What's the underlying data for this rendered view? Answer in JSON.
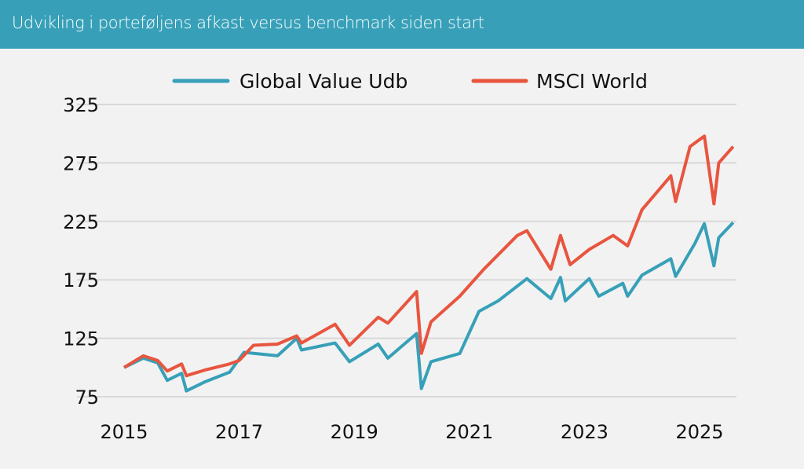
{
  "header": {
    "title": "Udvikling i porteføljens afkast versus benchmark siden start"
  },
  "chart_data": {
    "type": "line",
    "title": "Udvikling i porteføljens afkast versus benchmark siden start",
    "xlabel": "",
    "ylabel": "",
    "ylim": [
      75,
      325
    ],
    "xlim": [
      "2015-01",
      "2025-09"
    ],
    "yticks": [
      "325",
      "275",
      "225",
      "175",
      "125",
      "75"
    ],
    "xticks": [
      "2015",
      "2017",
      "2019",
      "2021",
      "2023",
      "2025"
    ],
    "grid": "horizontal",
    "legend_position": "top",
    "series": [
      {
        "name": "Global Value Udb",
        "color": "#37a0b8",
        "points": [
          [
            "2015-01",
            100
          ],
          [
            "2015-05",
            108
          ],
          [
            "2015-08",
            104
          ],
          [
            "2015-10",
            89
          ],
          [
            "2016-01",
            95
          ],
          [
            "2016-02",
            80
          ],
          [
            "2016-06",
            88
          ],
          [
            "2016-11",
            96
          ],
          [
            "2017-02",
            113
          ],
          [
            "2017-09",
            110
          ],
          [
            "2018-01",
            125
          ],
          [
            "2018-02",
            115
          ],
          [
            "2018-09",
            121
          ],
          [
            "2018-12",
            105
          ],
          [
            "2019-06",
            120
          ],
          [
            "2019-08",
            108
          ],
          [
            "2020-02",
            129
          ],
          [
            "2020-03",
            82
          ],
          [
            "2020-05",
            105
          ],
          [
            "2020-11",
            112
          ],
          [
            "2021-03",
            148
          ],
          [
            "2021-07",
            157
          ],
          [
            "2022-01",
            176
          ],
          [
            "2022-06",
            159
          ],
          [
            "2022-08",
            177
          ],
          [
            "2022-09",
            157
          ],
          [
            "2023-02",
            176
          ],
          [
            "2023-04",
            161
          ],
          [
            "2023-09",
            172
          ],
          [
            "2023-10",
            161
          ],
          [
            "2024-01",
            179
          ],
          [
            "2024-07",
            193
          ],
          [
            "2024-08",
            178
          ],
          [
            "2024-12",
            206
          ],
          [
            "2025-02",
            223
          ],
          [
            "2025-04",
            187
          ],
          [
            "2025-05",
            211
          ],
          [
            "2025-08",
            224
          ]
        ]
      },
      {
        "name": "MSCI World",
        "color": "#e8553f",
        "points": [
          [
            "2015-01",
            100
          ],
          [
            "2015-05",
            110
          ],
          [
            "2015-08",
            106
          ],
          [
            "2015-10",
            97
          ],
          [
            "2016-01",
            103
          ],
          [
            "2016-02",
            93
          ],
          [
            "2016-06",
            98
          ],
          [
            "2016-11",
            103
          ],
          [
            "2017-01",
            106
          ],
          [
            "2017-04",
            119
          ],
          [
            "2017-09",
            120
          ],
          [
            "2018-01",
            127
          ],
          [
            "2018-02",
            121
          ],
          [
            "2018-09",
            137
          ],
          [
            "2018-12",
            119
          ],
          [
            "2019-06",
            143
          ],
          [
            "2019-08",
            138
          ],
          [
            "2020-02",
            165
          ],
          [
            "2020-03",
            112
          ],
          [
            "2020-05",
            139
          ],
          [
            "2020-11",
            161
          ],
          [
            "2021-04",
            184
          ],
          [
            "2021-11",
            213
          ],
          [
            "2022-01",
            217
          ],
          [
            "2022-06",
            184
          ],
          [
            "2022-08",
            213
          ],
          [
            "2022-10",
            188
          ],
          [
            "2023-02",
            201
          ],
          [
            "2023-07",
            213
          ],
          [
            "2023-10",
            204
          ],
          [
            "2024-01",
            235
          ],
          [
            "2024-07",
            264
          ],
          [
            "2024-08",
            242
          ],
          [
            "2024-11",
            289
          ],
          [
            "2025-02",
            298
          ],
          [
            "2025-04",
            240
          ],
          [
            "2025-05",
            275
          ],
          [
            "2025-08",
            289
          ]
        ]
      }
    ]
  }
}
